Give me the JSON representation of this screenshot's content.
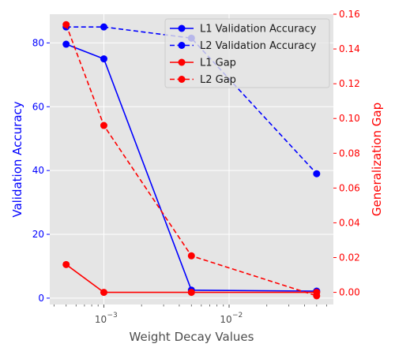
{
  "chart_data": {
    "type": "line",
    "xlabel": "Weight Decay Values",
    "ylabel_left": "Validation Accuracy",
    "ylabel_right": "Generalization Gap",
    "x_scale": "log",
    "x": [
      0.0005,
      0.001,
      0.005,
      0.05
    ],
    "x_ticks": [
      {
        "value": 0.001,
        "label": "10",
        "exp": "−3"
      },
      {
        "value": 0.01,
        "label": "10",
        "exp": "−2"
      }
    ],
    "ylim_left": [
      -2,
      89
    ],
    "yticks_left": [
      0,
      20,
      40,
      60,
      80
    ],
    "ylim_right": [
      -0.007,
      0.16
    ],
    "yticks_right": [
      0.0,
      0.02,
      0.04,
      0.06,
      0.08,
      0.1,
      0.12,
      0.14,
      0.16
    ],
    "yticks_right_labels": [
      "0.00",
      "0.02",
      "0.04",
      "0.06",
      "0.08",
      "0.10",
      "0.12",
      "0.14",
      "0.16"
    ],
    "grid": true,
    "legend_position": "top-right",
    "series": [
      {
        "name": "L1 Validation Accuracy",
        "axis": "left",
        "color": "#0000ff",
        "dashed": false,
        "values": [
          79.6,
          75.0,
          2.5,
          2.2
        ]
      },
      {
        "name": "L2 Validation Accuracy",
        "axis": "left",
        "color": "#0000ff",
        "dashed": true,
        "values": [
          85.0,
          85.0,
          81.5,
          39.0
        ]
      },
      {
        "name": "L1 Gap",
        "axis": "right",
        "color": "#ff0000",
        "dashed": false,
        "values": [
          0.016,
          0.0,
          0.0,
          0.0
        ]
      },
      {
        "name": "L2 Gap",
        "axis": "right",
        "color": "#ff0000",
        "dashed": true,
        "values": [
          0.154,
          0.096,
          0.021,
          -0.002
        ]
      }
    ],
    "colors": {
      "left_axis": "#0000ff",
      "right_axis": "#ff0000",
      "plot_bg": "#e5e5e5",
      "grid": "#ffffff"
    }
  }
}
